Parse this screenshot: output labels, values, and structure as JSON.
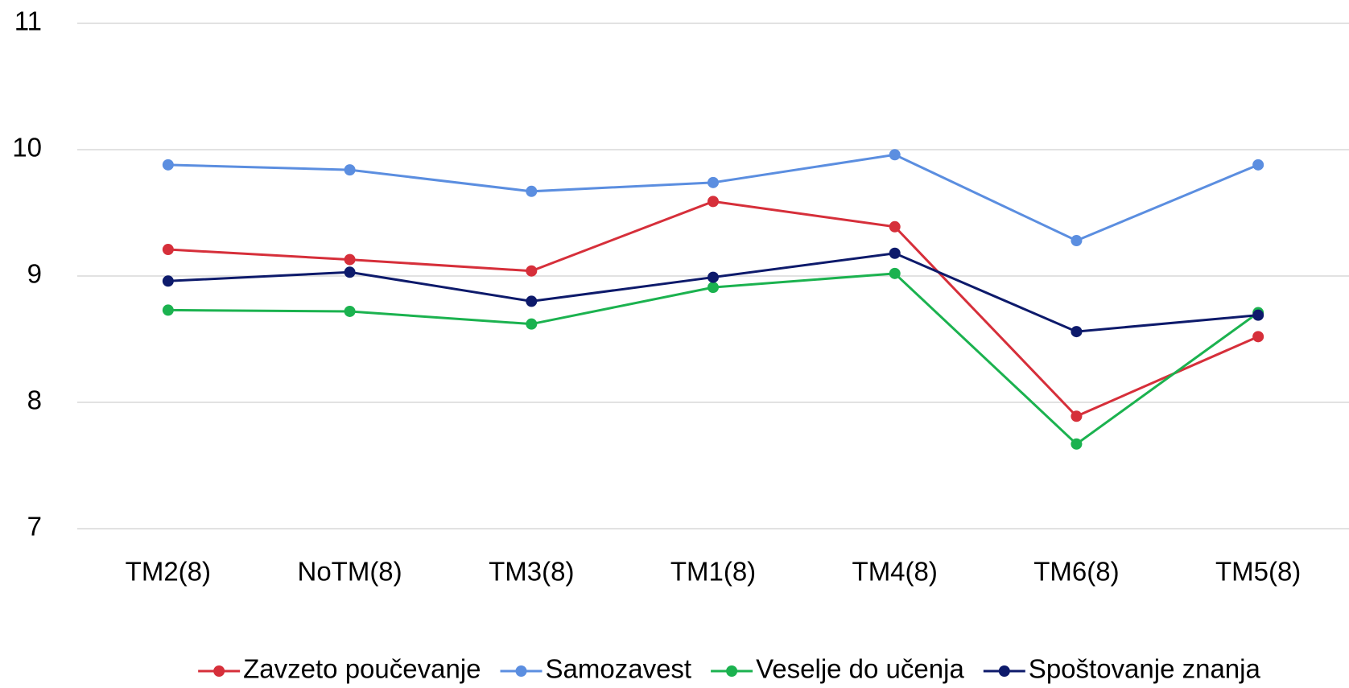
{
  "chart_data": {
    "type": "line",
    "categories": [
      "TM2(8)",
      "NoTM(8)",
      "TM3(8)",
      "TM1(8)",
      "TM4(8)",
      "TM6(8)",
      "TM5(8)"
    ],
    "series": [
      {
        "name": "Zavzeto poučevanje",
        "color": "#d62f3a",
        "values": [
          9.21,
          9.13,
          9.04,
          9.59,
          9.39,
          7.89,
          8.52
        ]
      },
      {
        "name": "Samozavest",
        "color": "#5b8ee0",
        "values": [
          9.88,
          9.84,
          9.67,
          9.74,
          9.96,
          9.28,
          9.88
        ]
      },
      {
        "name": "Veselje do učenja",
        "color": "#1bb24f",
        "values": [
          8.73,
          8.72,
          8.62,
          8.91,
          9.02,
          7.67,
          8.71
        ]
      },
      {
        "name": "Spoštovanje znanja",
        "color": "#0d1a6b",
        "values": [
          8.96,
          9.03,
          8.8,
          8.99,
          9.18,
          8.56,
          8.69
        ]
      }
    ],
    "ylim": [
      7,
      11
    ],
    "yticks": [
      7,
      8,
      9,
      10,
      11
    ],
    "grid": true,
    "legend": "bottom"
  }
}
